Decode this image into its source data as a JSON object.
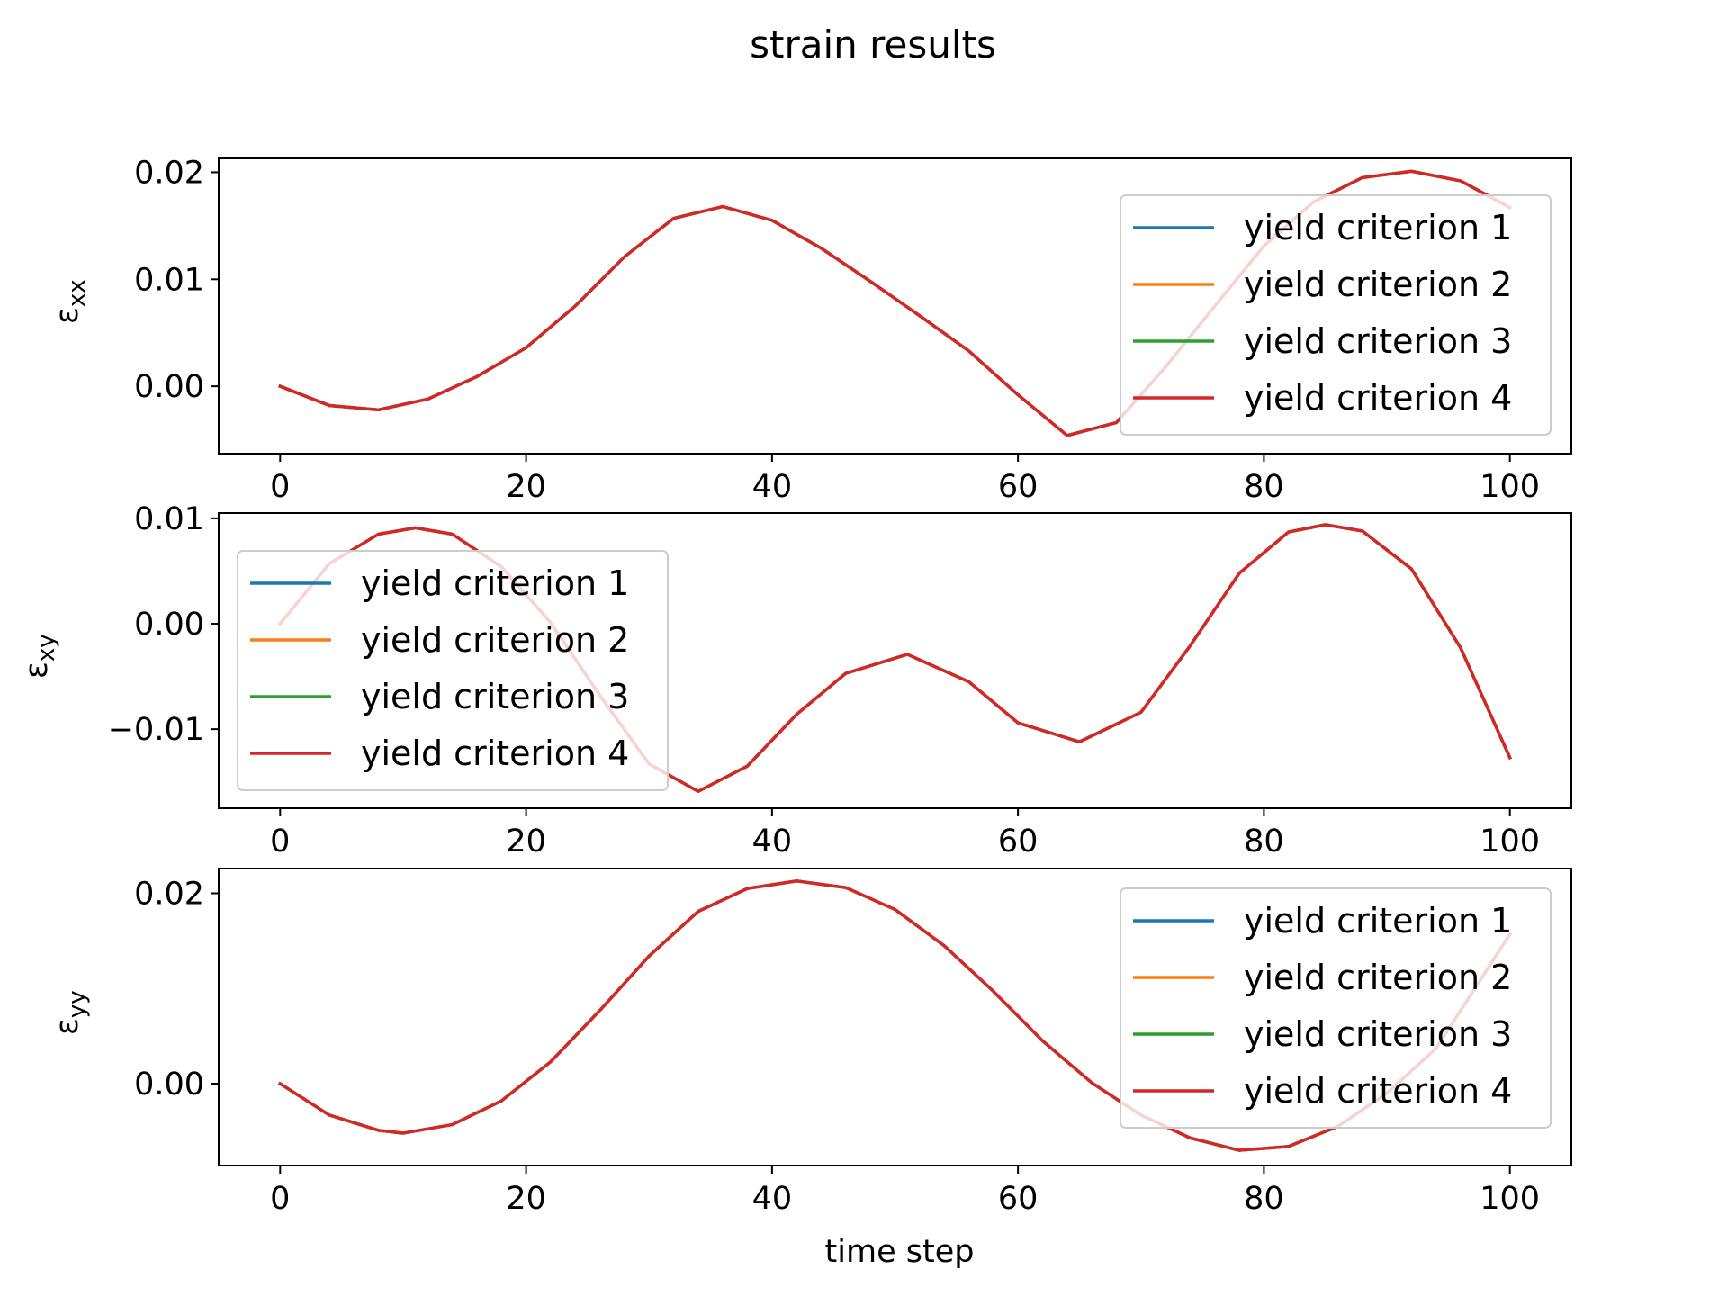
{
  "figure": {
    "title": "strain results"
  },
  "chart_data": [
    {
      "type": "line",
      "title": "",
      "xlabel": "",
      "ylabel": {
        "symbol": "ε",
        "subscript": "xx"
      },
      "xlim": [
        -5,
        105
      ],
      "ylim": [
        -0.0063,
        0.0213
      ],
      "xticks": [
        0,
        20,
        40,
        60,
        80,
        100
      ],
      "xtick_labels": [
        "0",
        "20",
        "40",
        "60",
        "80",
        "100"
      ],
      "yticks": [
        0.0,
        0.01,
        0.02
      ],
      "ytick_labels": [
        "0.00",
        "0.01",
        "0.02"
      ],
      "grid": false,
      "legend_position": "lower-right",
      "x": [
        0,
        4,
        8,
        12,
        16,
        20,
        24,
        28,
        32,
        36,
        40,
        44,
        48,
        52,
        56,
        60,
        64,
        68,
        72,
        76,
        80,
        84,
        88,
        92,
        96,
        100
      ],
      "series": [
        {
          "name": "yield criterion 1",
          "color": "#1f77b4",
          "values": [
            0.0,
            -0.0018,
            -0.0022,
            -0.0012,
            0.0009,
            0.0036,
            0.0075,
            0.0121,
            0.0157,
            0.0168,
            0.0155,
            0.0129,
            0.0098,
            0.0066,
            0.0033,
            -0.0008,
            -0.0046,
            -0.0034,
            0.0018,
            0.0075,
            0.0131,
            0.0172,
            0.0195,
            0.0201,
            0.0192,
            0.0167
          ]
        },
        {
          "name": "yield criterion 2",
          "color": "#ff7f0e",
          "values": [
            0.0,
            -0.0018,
            -0.0022,
            -0.0012,
            0.0009,
            0.0036,
            0.0075,
            0.0121,
            0.0157,
            0.0168,
            0.0155,
            0.0129,
            0.0098,
            0.0066,
            0.0033,
            -0.0008,
            -0.0046,
            -0.0034,
            0.0018,
            0.0075,
            0.0131,
            0.0172,
            0.0195,
            0.0201,
            0.0192,
            0.0167
          ]
        },
        {
          "name": "yield criterion 3",
          "color": "#2ca02c",
          "values": [
            0.0,
            -0.0018,
            -0.0022,
            -0.0012,
            0.0009,
            0.0036,
            0.0075,
            0.0121,
            0.0157,
            0.0168,
            0.0155,
            0.0129,
            0.0098,
            0.0066,
            0.0033,
            -0.0008,
            -0.0046,
            -0.0034,
            0.0018,
            0.0075,
            0.0131,
            0.0172,
            0.0195,
            0.0201,
            0.0192,
            0.0167
          ]
        },
        {
          "name": "yield criterion 4",
          "color": "#d62728",
          "values": [
            0.0,
            -0.0018,
            -0.0022,
            -0.0012,
            0.0009,
            0.0036,
            0.0075,
            0.0121,
            0.0157,
            0.0168,
            0.0155,
            0.0129,
            0.0098,
            0.0066,
            0.0033,
            -0.0008,
            -0.0046,
            -0.0034,
            0.0018,
            0.0075,
            0.0131,
            0.0172,
            0.0195,
            0.0201,
            0.0192,
            0.0167
          ]
        }
      ]
    },
    {
      "type": "line",
      "title": "",
      "xlabel": "",
      "ylabel": {
        "symbol": "ε",
        "subscript": "xy"
      },
      "xlim": [
        -5,
        105
      ],
      "ylim": [
        -0.0175,
        0.0105
      ],
      "xticks": [
        0,
        20,
        40,
        60,
        80,
        100
      ],
      "xtick_labels": [
        "0",
        "20",
        "40",
        "60",
        "80",
        "100"
      ],
      "yticks": [
        -0.01,
        0.0,
        0.01
      ],
      "ytick_labels": [
        "−0.01",
        "0.00",
        "0.01"
      ],
      "grid": false,
      "legend_position": "left",
      "x": [
        0,
        4,
        8,
        11,
        14,
        18,
        22,
        26,
        30,
        34,
        38,
        42,
        46,
        51,
        56,
        60,
        65,
        70,
        74,
        78,
        82,
        85,
        88,
        92,
        96,
        100
      ],
      "series": [
        {
          "name": "yield criterion 1",
          "color": "#1f77b4",
          "values": [
            0.0,
            0.0057,
            0.0085,
            0.0091,
            0.0085,
            0.0054,
            0.0001,
            -0.0068,
            -0.0133,
            -0.0159,
            -0.0135,
            -0.0086,
            -0.0047,
            -0.0029,
            -0.0055,
            -0.0094,
            -0.0112,
            -0.0084,
            -0.0021,
            0.0048,
            0.0087,
            0.0094,
            0.0088,
            0.0052,
            -0.0023,
            -0.0127
          ]
        },
        {
          "name": "yield criterion 2",
          "color": "#ff7f0e",
          "values": [
            0.0,
            0.0057,
            0.0085,
            0.0091,
            0.0085,
            0.0054,
            0.0001,
            -0.0068,
            -0.0133,
            -0.0159,
            -0.0135,
            -0.0086,
            -0.0047,
            -0.0029,
            -0.0055,
            -0.0094,
            -0.0112,
            -0.0084,
            -0.0021,
            0.0048,
            0.0087,
            0.0094,
            0.0088,
            0.0052,
            -0.0023,
            -0.0127
          ]
        },
        {
          "name": "yield criterion 3",
          "color": "#2ca02c",
          "values": [
            0.0,
            0.0057,
            0.0085,
            0.0091,
            0.0085,
            0.0054,
            0.0001,
            -0.0068,
            -0.0133,
            -0.0159,
            -0.0135,
            -0.0086,
            -0.0047,
            -0.0029,
            -0.0055,
            -0.0094,
            -0.0112,
            -0.0084,
            -0.0021,
            0.0048,
            0.0087,
            0.0094,
            0.0088,
            0.0052,
            -0.0023,
            -0.0127
          ]
        },
        {
          "name": "yield criterion 4",
          "color": "#d62728",
          "values": [
            0.0,
            0.0057,
            0.0085,
            0.0091,
            0.0085,
            0.0054,
            0.0001,
            -0.0068,
            -0.0133,
            -0.0159,
            -0.0135,
            -0.0086,
            -0.0047,
            -0.0029,
            -0.0055,
            -0.0094,
            -0.0112,
            -0.0084,
            -0.0021,
            0.0048,
            0.0087,
            0.0094,
            0.0088,
            0.0052,
            -0.0023,
            -0.0127
          ]
        }
      ]
    },
    {
      "type": "line",
      "title": "",
      "xlabel": "time step",
      "ylabel": {
        "symbol": "ε",
        "subscript": "yy"
      },
      "xlim": [
        -5,
        105
      ],
      "ylim": [
        -0.0086,
        0.0226
      ],
      "xticks": [
        0,
        20,
        40,
        60,
        80,
        100
      ],
      "xtick_labels": [
        "0",
        "20",
        "40",
        "60",
        "80",
        "100"
      ],
      "yticks": [
        0.0,
        0.02
      ],
      "ytick_labels": [
        "0.00",
        "0.02"
      ],
      "grid": false,
      "legend_position": "right",
      "x": [
        0,
        4,
        8,
        10,
        14,
        18,
        22,
        26,
        30,
        34,
        38,
        42,
        46,
        50,
        54,
        58,
        62,
        66,
        70,
        74,
        78,
        82,
        86,
        90,
        94,
        100
      ],
      "series": [
        {
          "name": "yield criterion 1",
          "color": "#1f77b4",
          "values": [
            0.0,
            -0.0033,
            -0.0049,
            -0.0052,
            -0.0043,
            -0.0018,
            0.0023,
            0.0077,
            0.0134,
            0.0181,
            0.0205,
            0.0213,
            0.0206,
            0.0183,
            0.0145,
            0.0097,
            0.0045,
            0.0001,
            -0.0033,
            -0.0057,
            -0.007,
            -0.0066,
            -0.0045,
            -0.001,
            0.0037,
            0.0157
          ]
        },
        {
          "name": "yield criterion 2",
          "color": "#ff7f0e",
          "values": [
            0.0,
            -0.0033,
            -0.0049,
            -0.0052,
            -0.0043,
            -0.0018,
            0.0023,
            0.0077,
            0.0134,
            0.0181,
            0.0205,
            0.0213,
            0.0206,
            0.0183,
            0.0145,
            0.0097,
            0.0045,
            0.0001,
            -0.0033,
            -0.0057,
            -0.007,
            -0.0066,
            -0.0045,
            -0.001,
            0.0037,
            0.0157
          ]
        },
        {
          "name": "yield criterion 3",
          "color": "#2ca02c",
          "values": [
            0.0,
            -0.0033,
            -0.0049,
            -0.0052,
            -0.0043,
            -0.0018,
            0.0023,
            0.0077,
            0.0134,
            0.0181,
            0.0205,
            0.0213,
            0.0206,
            0.0183,
            0.0145,
            0.0097,
            0.0045,
            0.0001,
            -0.0033,
            -0.0057,
            -0.007,
            -0.0066,
            -0.0045,
            -0.001,
            0.0037,
            0.0157
          ]
        },
        {
          "name": "yield criterion 4",
          "color": "#d62728",
          "values": [
            0.0,
            -0.0033,
            -0.0049,
            -0.0052,
            -0.0043,
            -0.0018,
            0.0023,
            0.0077,
            0.0134,
            0.0181,
            0.0205,
            0.0213,
            0.0206,
            0.0183,
            0.0145,
            0.0097,
            0.0045,
            0.0001,
            -0.0033,
            -0.0057,
            -0.007,
            -0.0066,
            -0.0045,
            -0.001,
            0.0037,
            0.0157
          ]
        }
      ]
    }
  ]
}
